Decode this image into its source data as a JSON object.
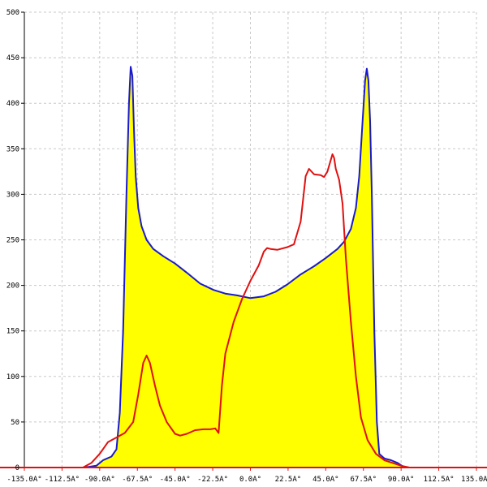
{
  "chart_data": {
    "type": "area",
    "title": "",
    "xlabel": "",
    "ylabel": "",
    "xlim": [
      -135,
      135
    ],
    "ylim": [
      0,
      500
    ],
    "grid": true,
    "x_ticks": [
      -135,
      -112.5,
      -90,
      -67.5,
      -45,
      -22.5,
      0,
      22.5,
      45,
      67.5,
      90,
      112.5,
      135
    ],
    "x_tick_labels": [
      "-135.0A°",
      "-112.5A°",
      "-90.0A°",
      "-67.5A°",
      "-45.0A°",
      "-22.5A°",
      "0.0A°",
      "22.5A°",
      "45.0A°",
      "67.5A°",
      "90.0A°",
      "112.5A°",
      "135.0A°"
    ],
    "y_ticks": [
      0,
      50,
      100,
      150,
      200,
      250,
      300,
      350,
      400,
      450,
      500
    ],
    "y_tick_labels": [
      "0",
      "50",
      "100",
      "150",
      "200",
      "250",
      "300",
      "350",
      "400",
      "450",
      "500"
    ],
    "series": [
      {
        "color": "#1a1acc",
        "fill": "#ffff00",
        "points": [
          [
            -99,
            0
          ],
          [
            -92,
            2
          ],
          [
            -88,
            8
          ],
          [
            -83,
            12
          ],
          [
            -80,
            20
          ],
          [
            -78,
            60
          ],
          [
            -76,
            150
          ],
          [
            -74,
            300
          ],
          [
            -72.5,
            400
          ],
          [
            -71.5,
            440
          ],
          [
            -70.5,
            430
          ],
          [
            -69.5,
            370
          ],
          [
            -68.5,
            320
          ],
          [
            -67,
            285
          ],
          [
            -65,
            265
          ],
          [
            -62,
            250
          ],
          [
            -58,
            240
          ],
          [
            -52,
            232
          ],
          [
            -45,
            224
          ],
          [
            -38,
            214
          ],
          [
            -30,
            202
          ],
          [
            -22,
            195
          ],
          [
            -15,
            191
          ],
          [
            -8,
            189
          ],
          [
            0,
            186
          ],
          [
            8,
            188
          ],
          [
            15,
            193
          ],
          [
            22,
            201
          ],
          [
            30,
            212
          ],
          [
            38,
            221
          ],
          [
            45,
            230
          ],
          [
            52,
            240
          ],
          [
            56,
            248
          ],
          [
            60,
            262
          ],
          [
            63,
            285
          ],
          [
            65,
            320
          ],
          [
            67,
            380
          ],
          [
            68.5,
            425
          ],
          [
            69.5,
            438
          ],
          [
            70.5,
            425
          ],
          [
            71.5,
            380
          ],
          [
            72.5,
            300
          ],
          [
            74,
            150
          ],
          [
            75.5,
            50
          ],
          [
            77,
            15
          ],
          [
            80,
            10
          ],
          [
            84,
            8
          ],
          [
            88,
            5
          ],
          [
            92,
            0
          ]
        ]
      },
      {
        "color": "#e01010",
        "points": [
          [
            -100,
            0
          ],
          [
            -95,
            5
          ],
          [
            -90,
            15
          ],
          [
            -85,
            28
          ],
          [
            -80,
            33
          ],
          [
            -75,
            38
          ],
          [
            -70,
            50
          ],
          [
            -67,
            80
          ],
          [
            -64,
            115
          ],
          [
            -62,
            123
          ],
          [
            -60,
            115
          ],
          [
            -57,
            90
          ],
          [
            -54,
            68
          ],
          [
            -50,
            50
          ],
          [
            -45,
            37
          ],
          [
            -42,
            35
          ],
          [
            -38,
            37
          ],
          [
            -33,
            41
          ],
          [
            -28,
            42
          ],
          [
            -24,
            42
          ],
          [
            -21,
            43
          ],
          [
            -19,
            38
          ],
          [
            -17,
            90
          ],
          [
            -15,
            125
          ],
          [
            -10,
            160
          ],
          [
            -5,
            185
          ],
          [
            0,
            205
          ],
          [
            5,
            222
          ],
          [
            8,
            237
          ],
          [
            10,
            241
          ],
          [
            12,
            240
          ],
          [
            16,
            239
          ],
          [
            22,
            242
          ],
          [
            26,
            245
          ],
          [
            30,
            270
          ],
          [
            33,
            320
          ],
          [
            35,
            328
          ],
          [
            38,
            322
          ],
          [
            42,
            321
          ],
          [
            44,
            319
          ],
          [
            46,
            325
          ],
          [
            49,
            344
          ],
          [
            50,
            340
          ],
          [
            51,
            328
          ],
          [
            53,
            316
          ],
          [
            55,
            290
          ],
          [
            57,
            230
          ],
          [
            60,
            160
          ],
          [
            63,
            100
          ],
          [
            66,
            55
          ],
          [
            70,
            30
          ],
          [
            75,
            15
          ],
          [
            80,
            8
          ],
          [
            85,
            5
          ],
          [
            90,
            2
          ],
          [
            95,
            0
          ]
        ]
      }
    ]
  }
}
